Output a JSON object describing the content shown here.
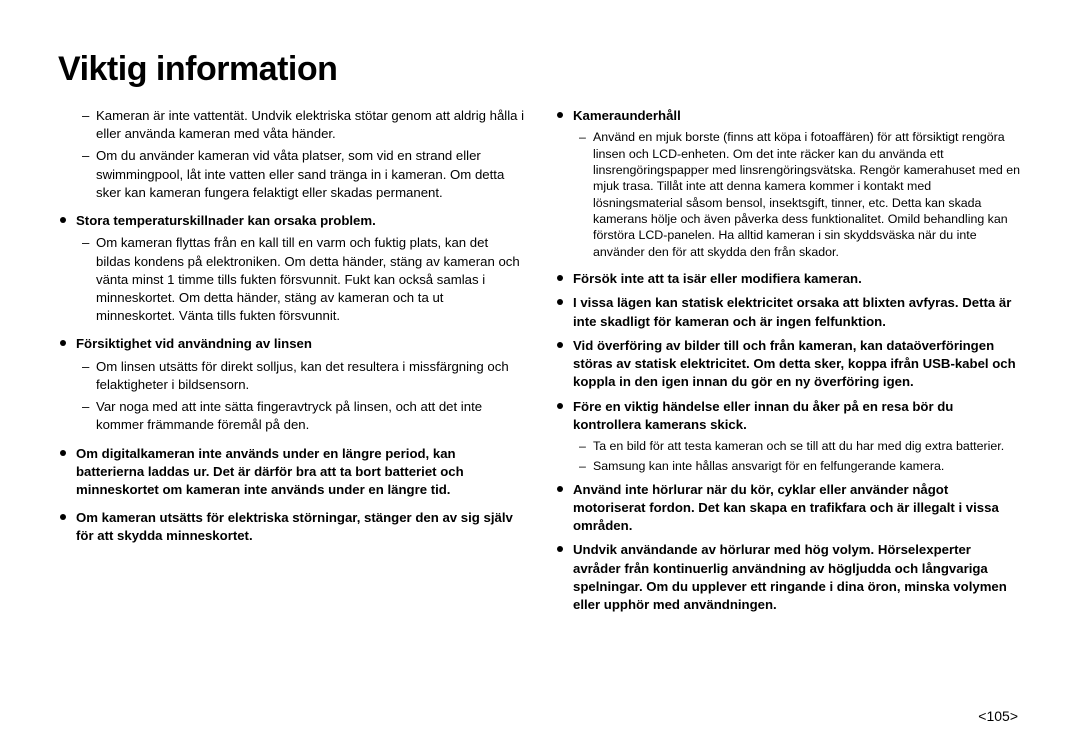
{
  "title": "Viktig information",
  "page_number": "<105>",
  "left": {
    "intro_subs": [
      "Kameran är inte vattentät. Undvik elektriska stötar genom att aldrig hålla i eller använda kameran med våta händer.",
      "Om du använder kameran vid våta platser, som vid en strand eller swimmingpool, låt inte vatten eller sand tränga in i kameran. Om detta sker kan kameran fungera felaktigt eller skadas permanent."
    ],
    "h1": "Stora temperaturskillnader kan orsaka problem.",
    "h1_subs": [
      "Om kameran flyttas från en kall till en varm och fuktig plats, kan det bildas kondens på elektroniken. Om detta händer, stäng av kameran och vänta minst 1 timme tills fukten försvunnit. Fukt kan också samlas i minneskortet. Om detta händer, stäng av kameran och ta ut minneskortet. Vänta tills fukten försvunnit."
    ],
    "h2": "Försiktighet vid användning av linsen",
    "h2_subs": [
      "Om linsen utsätts för direkt solljus, kan det resultera i missfärgning och felaktigheter i bildsensorn.",
      "Var noga med att inte sätta fingeravtryck på linsen, och att det inte kommer främmande föremål på den."
    ],
    "b1": "Om digitalkameran inte används under en längre period, kan batterierna laddas ur. Det är därför bra att ta bort batteriet och minneskortet om kameran inte används under en längre tid.",
    "b2": "Om kameran utsätts för elektriska störningar, stänger den av sig själv för att skydda minneskortet."
  },
  "right": {
    "h1": "Kameraunderhåll",
    "h1_subs": [
      "Använd en mjuk borste (finns att köpa i fotoaffären) för att försiktigt rengöra linsen och LCD-enheten. Om det inte räcker kan du använda ett linsrengöringspapper med linsrengöringsvätska. Rengör kamerahuset med en mjuk trasa. Tillåt inte att denna kamera kommer i kontakt med lösningsmaterial såsom bensol, insektsgift, tinner, etc. Detta kan skada kamerans hölje och även påverka dess funktionalitet. Omild behandling kan förstöra LCD-panelen. Ha alltid kameran i sin skyddsväska när du inte använder den för att skydda den från skador."
    ],
    "b2": "Försök inte att ta isär eller modifiera kameran.",
    "b3": "I vissa lägen kan statisk elektricitet orsaka att blixten avfyras. Detta är inte skadligt för kameran och är ingen felfunktion.",
    "b4": "Vid överföring av bilder till och från kameran, kan dataöverföringen störas av statisk elektricitet. Om detta sker, koppa ifrån USB-kabel och koppla in den igen innan du gör en ny överföring igen.",
    "b5": "Före en viktig händelse eller innan du åker på en resa bör du kontrollera kamerans skick.",
    "b5_subs": [
      "Ta en bild för att testa kameran och se till att du har med dig extra batterier.",
      "Samsung kan inte hållas ansvarigt för en felfungerande kamera."
    ],
    "b6": "Använd inte hörlurar när du kör, cyklar eller använder något motoriserat fordon. Det kan skapa en trafikfara och är illegalt i vissa områden.",
    "b7": "Undvik användande av hörlurar med hög volym. Hörselexperter avråder från kontinuerlig användning av högljudda och långvariga spelningar. Om du upplever ett ringande i dina öron, minska volymen eller upphör med användningen."
  }
}
